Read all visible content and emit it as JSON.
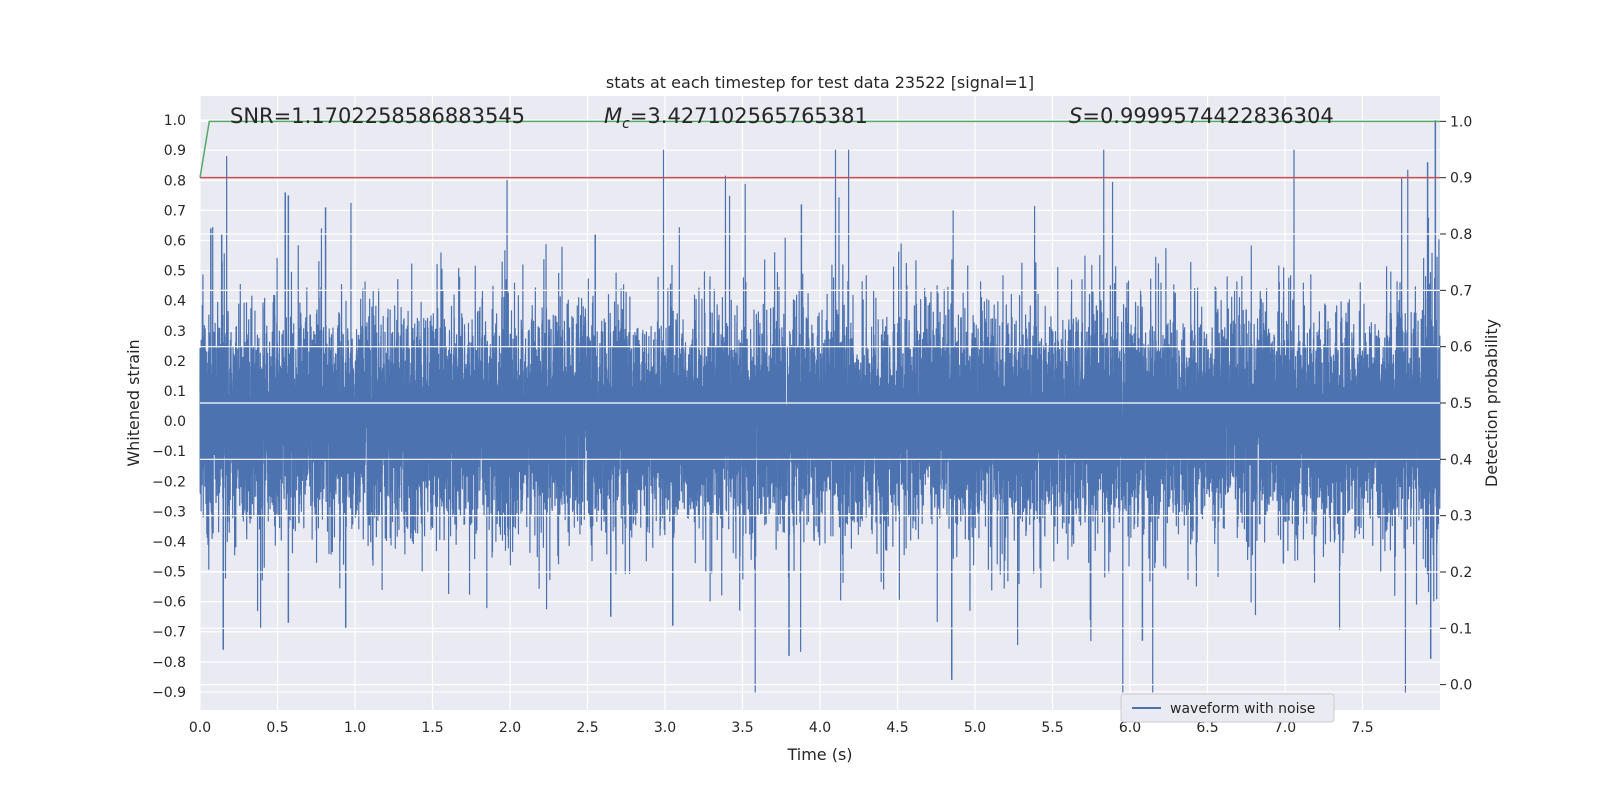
{
  "chart_data": {
    "type": "line",
    "title": "stats at each timestep for test data 23522 [signal=1]",
    "xlabel": "Time (s)",
    "ylabel": "Whitened strain",
    "y2label": "Detection probability",
    "xlim": [
      0.0,
      8.0
    ],
    "ylim": [
      -0.96,
      1.08
    ],
    "y2lim": [
      -0.045,
      1.045
    ],
    "x_ticks": [
      "0.0",
      "0.5",
      "1.0",
      "1.5",
      "2.0",
      "2.5",
      "3.0",
      "3.5",
      "4.0",
      "4.5",
      "5.0",
      "5.5",
      "6.0",
      "6.5",
      "7.0",
      "7.5"
    ],
    "y_ticks": [
      "1.0",
      "0.9",
      "0.8",
      "0.7",
      "0.6",
      "0.5",
      "0.4",
      "0.3",
      "0.2",
      "0.1",
      "0.0",
      "-0.1",
      "-0.2",
      "-0.3",
      "-0.4",
      "-0.5",
      "-0.6",
      "-0.7",
      "-0.8",
      "-0.9"
    ],
    "y2_ticks": [
      "1.0",
      "0.9",
      "0.8",
      "0.7",
      "0.6",
      "0.5",
      "0.4",
      "0.3",
      "0.2",
      "0.1",
      "0.0"
    ],
    "annotations": {
      "snr": "SNR=1.1702258586883545",
      "mc_symbol": "M",
      "mc_sub": "c",
      "mc_value": "=3.427102565765381",
      "s_symbol": "S",
      "s_value": "=0.9999574422836304"
    },
    "legend": {
      "position": "lower-right",
      "entries": [
        "waveform with noise"
      ]
    },
    "grid": true,
    "series": [
      {
        "name": "waveform with noise",
        "axis": "left",
        "color": "#4c72b0",
        "sample_spacing_s": 0.0005,
        "envelope_peaks": [
          {
            "x": 0.07,
            "y": 0.64
          },
          {
            "x": 0.14,
            "y": 0.62
          },
          {
            "x": 0.15,
            "y": -0.76
          },
          {
            "x": 0.55,
            "y": 0.76
          },
          {
            "x": 0.57,
            "y": 0.75
          },
          {
            "x": 0.57,
            "y": -0.67
          },
          {
            "x": 0.81,
            "y": 0.71
          },
          {
            "x": 0.94,
            "y": -0.69
          },
          {
            "x": 2.55,
            "y": 0.62
          },
          {
            "x": 2.65,
            "y": -0.65
          },
          {
            "x": 3.05,
            "y": -0.68
          },
          {
            "x": 3.8,
            "y": -0.78
          },
          {
            "x": 3.88,
            "y": 0.72
          },
          {
            "x": 4.85,
            "y": -0.86
          },
          {
            "x": 6.08,
            "y": -0.73
          },
          {
            "x": 7.92,
            "y": 0.86
          },
          {
            "x": 7.94,
            "y": -0.79
          },
          {
            "x": 7.97,
            "y": 1.0
          }
        ]
      },
      {
        "name": "",
        "axis": "right",
        "color": "#55a868",
        "x": [
          0.0,
          0.06,
          8.0
        ],
        "y": [
          0.9,
          1.0,
          1.0
        ]
      },
      {
        "name": "",
        "axis": "right",
        "color": "#c44e52",
        "x": [
          0.0,
          8.0
        ],
        "y": [
          0.9,
          0.9
        ]
      }
    ]
  }
}
